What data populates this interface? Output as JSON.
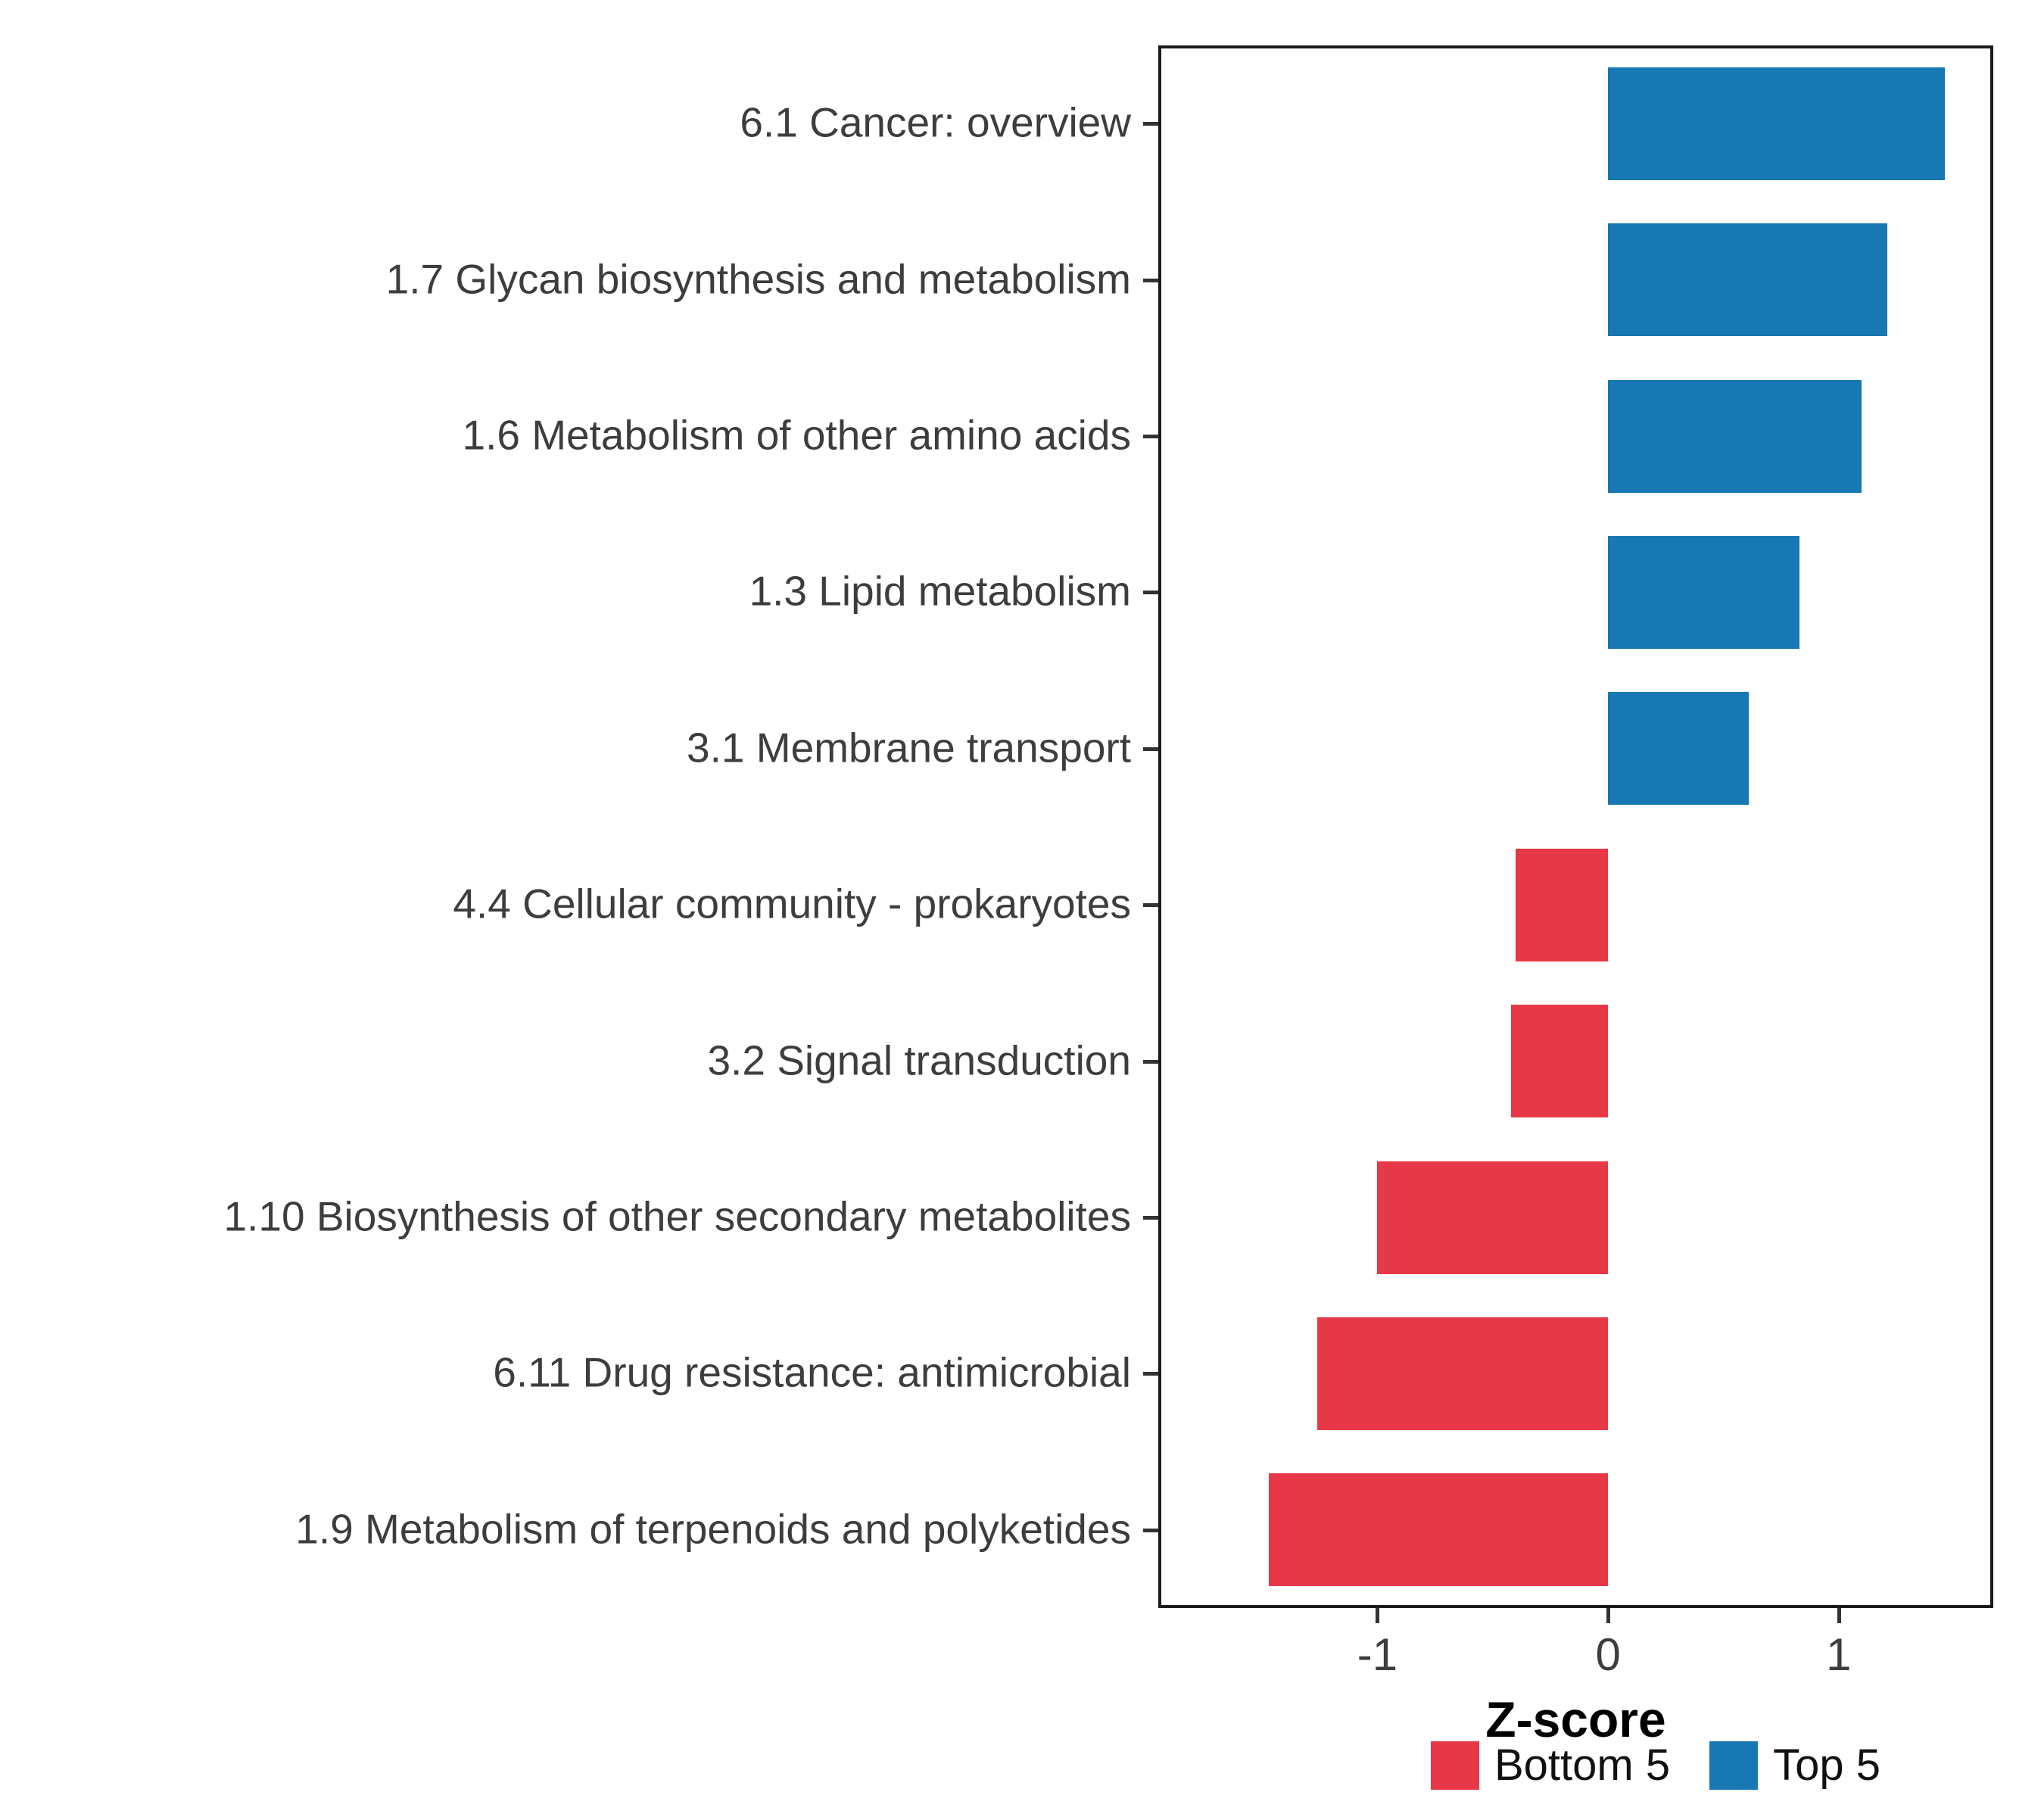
{
  "chart_data": {
    "type": "bar",
    "orientation": "horizontal",
    "title": "",
    "xlabel": "Z-score",
    "xlim": [
      -1.95,
      1.67
    ],
    "x_ticks": [
      -1,
      0,
      1
    ],
    "x_tick_labels": [
      "-1",
      "0",
      "1"
    ],
    "grid": false,
    "legend_position": "bottom-right",
    "categories": [
      "6.1 Cancer: overview",
      "1.7 Glycan biosynthesis and metabolism",
      "1.6 Metabolism of other amino acids",
      "1.3 Lipid metabolism",
      "3.1 Membrane transport",
      "4.4 Cellular community - prokaryotes",
      "3.2 Signal transduction",
      "1.10 Biosynthesis of other secondary metabolites",
      "6.11 Drug resistance: antimicrobial",
      "1.9 Metabolism of terpenoids and polyketides"
    ],
    "values": [
      1.46,
      1.21,
      1.1,
      0.83,
      0.61,
      -0.4,
      -0.42,
      -1.0,
      -1.26,
      -1.47
    ],
    "groups": [
      "Top 5",
      "Top 5",
      "Top 5",
      "Top 5",
      "Top 5",
      "Bottom 5",
      "Bottom 5",
      "Bottom 5",
      "Bottom 5",
      "Bottom 5"
    ],
    "legend": {
      "bottom": {
        "label": "Bottom 5",
        "color": "#E73847"
      },
      "top": {
        "label": "Top 5",
        "color": "#1878B4"
      }
    }
  }
}
